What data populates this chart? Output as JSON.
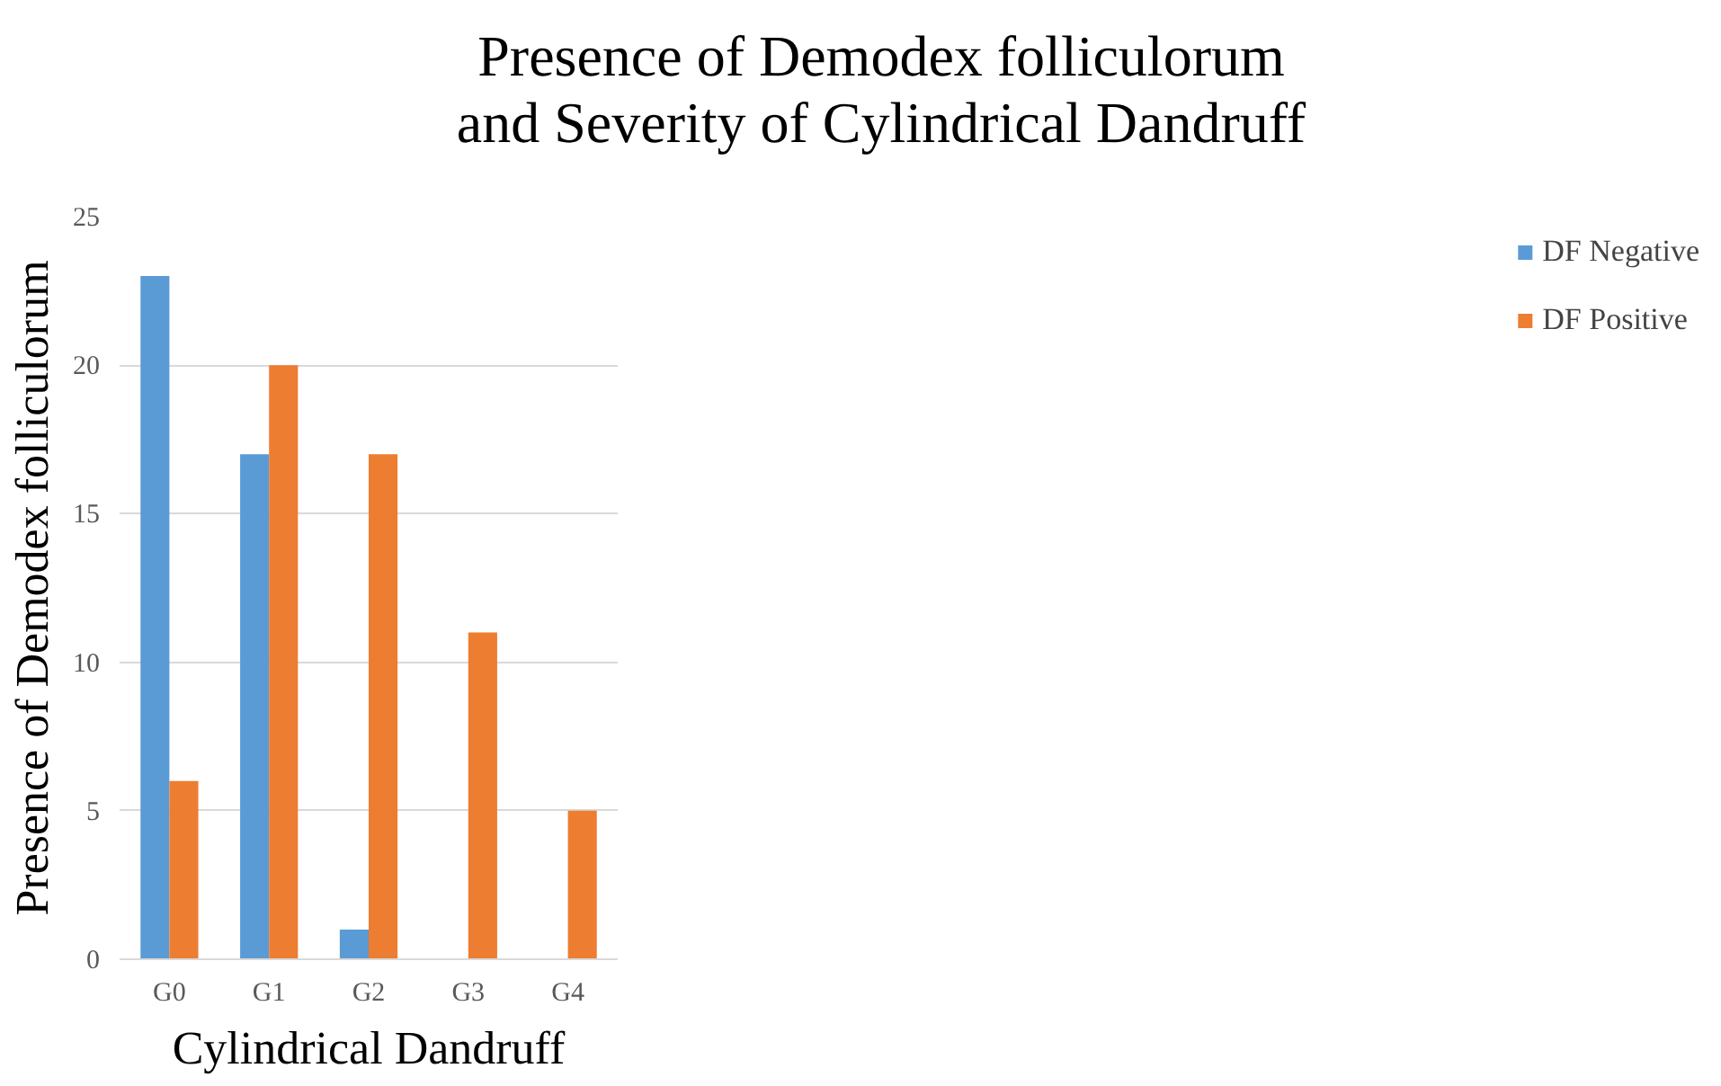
{
  "chart_data": {
    "type": "bar",
    "title": "Presence of Demodex folliculorum and Severity of Cylindrical Dandruff",
    "xlabel": "Cylindrical Dandruff",
    "ylabel": "Presence of Demodex folliculorum",
    "categories": [
      "G0",
      "G1",
      "G2",
      "G3",
      "G4"
    ],
    "series": [
      {
        "name": "DF Negative",
        "color": "#5b9bd5",
        "values": [
          23,
          17,
          1,
          0,
          0
        ]
      },
      {
        "name": "DF Positive",
        "color": "#ed7d31",
        "values": [
          6,
          20,
          17,
          11,
          5
        ]
      }
    ],
    "ylim": [
      0,
      25
    ],
    "yticks": [
      0,
      5,
      10,
      15,
      20,
      25
    ],
    "grid": "y",
    "legend": "right"
  }
}
